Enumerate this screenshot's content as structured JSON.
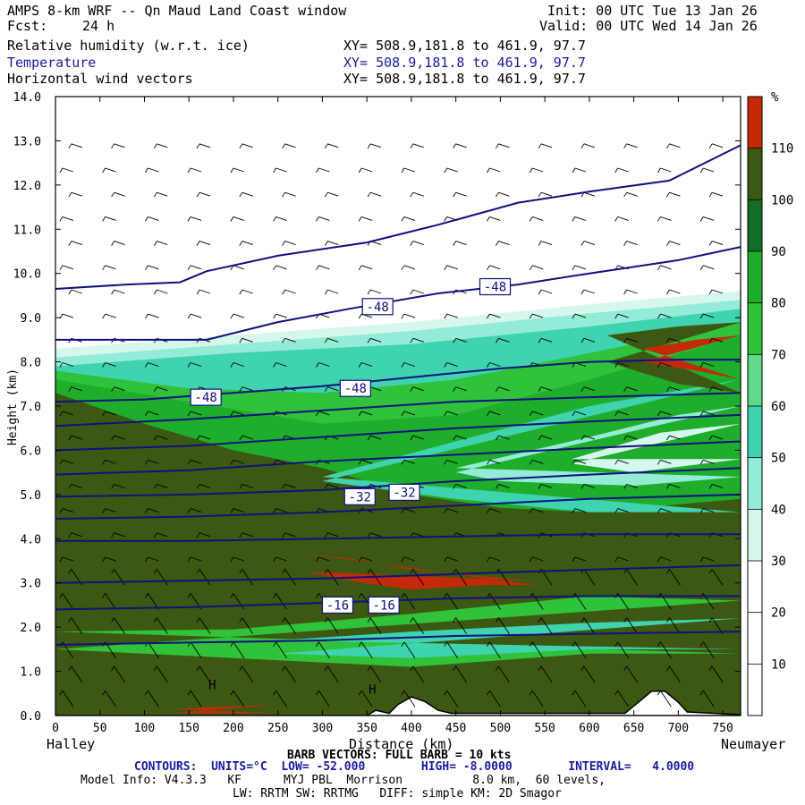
{
  "header": {
    "title": "AMPS 8-km WRF -- Qn Maud Land Coast window",
    "fcst_label": "Fcst:",
    "fcst_value": "24 h",
    "init": "Init: 00 UTC Tue 13 Jan 26",
    "valid": "Valid: 00 UTC Wed 14 Jan 26",
    "fields": [
      {
        "name": "Relative humidity (w.r.t. ice)",
        "xy": "XY= 508.9,181.8 to 461.9, 97.7",
        "color": "#000000"
      },
      {
        "name": "Temperature",
        "xy": "XY= 508.9,181.8 to 461.9, 97.7",
        "color": "#1a1aa0"
      },
      {
        "name": "Horizontal wind vectors",
        "xy": "XY= 508.9,181.8 to 461.9, 97.7",
        "color": "#000000"
      }
    ]
  },
  "chart_data": {
    "type": "heatmap",
    "xlabel": "Distance (km)",
    "ylabel": "Height (km)",
    "xlim": [
      0,
      770
    ],
    "ylim": [
      0,
      14
    ],
    "x_ticks": [
      0,
      50,
      100,
      150,
      200,
      250,
      300,
      350,
      400,
      450,
      500,
      550,
      600,
      650,
      700,
      750
    ],
    "y_ticks": [
      "0.0",
      "1.0",
      "2.0",
      "3.0",
      "4.0",
      "5.0",
      "6.0",
      "7.0",
      "8.0",
      "9.0",
      "10.0",
      "11.0",
      "12.0",
      "13.0",
      "14.0"
    ],
    "left_end_label": "Halley",
    "right_end_label": "Neumayer",
    "colorbar": {
      "unit": "%",
      "labels": [
        "10",
        "20",
        "30",
        "40",
        "50",
        "60",
        "70",
        "80",
        "90",
        "100",
        "110"
      ],
      "bins": [
        {
          "from": 0,
          "to": 30,
          "color": "#ffffff"
        },
        {
          "from": 30,
          "to": 40,
          "color": "#d6f7ee"
        },
        {
          "from": 40,
          "to": 50,
          "color": "#95ecd6"
        },
        {
          "from": 50,
          "to": 60,
          "color": "#3fd3b0"
        },
        {
          "from": 60,
          "to": 70,
          "color": "#5fd98a"
        },
        {
          "from": 70,
          "to": 80,
          "color": "#2fc23a"
        },
        {
          "from": 80,
          "to": 90,
          "color": "#1fae2c"
        },
        {
          "from": 90,
          "to": 100,
          "color": "#126e24"
        },
        {
          "from": 100,
          "to": 110,
          "color": "#3d5812"
        },
        {
          "from": 110,
          "to": 120,
          "color": "#c42a0a"
        }
      ]
    },
    "temperature_contours_celsius": [
      {
        "value": -48,
        "points": [
          [
            0,
            9.65
          ],
          [
            80,
            9.75
          ],
          [
            140,
            9.8
          ],
          [
            170,
            10.05
          ],
          [
            250,
            10.4
          ],
          [
            350,
            10.7
          ],
          [
            430,
            11.1
          ],
          [
            520,
            11.6
          ],
          [
            600,
            11.85
          ],
          [
            690,
            12.1
          ],
          [
            770,
            12.9
          ]
        ]
      },
      {
        "value": -48,
        "points": [
          [
            0,
            8.5
          ],
          [
            170,
            8.5
          ],
          [
            250,
            8.9
          ],
          [
            330,
            9.2
          ],
          [
            430,
            9.55
          ],
          [
            520,
            9.75
          ],
          [
            600,
            10.0
          ],
          [
            700,
            10.3
          ],
          [
            770,
            10.6
          ]
        ]
      },
      {
        "value": -48,
        "points": [
          [
            0,
            7.1
          ],
          [
            100,
            7.15
          ],
          [
            200,
            7.3
          ],
          [
            300,
            7.45
          ],
          [
            400,
            7.65
          ],
          [
            500,
            7.85
          ],
          [
            600,
            8.0
          ],
          [
            700,
            8.05
          ],
          [
            770,
            8.05
          ]
        ]
      },
      {
        "value": -44,
        "points": [
          [
            0,
            6.55
          ],
          [
            150,
            6.7
          ],
          [
            300,
            6.9
          ],
          [
            450,
            7.1
          ],
          [
            600,
            7.2
          ],
          [
            770,
            7.3
          ]
        ]
      },
      {
        "value": -40,
        "points": [
          [
            0,
            6.0
          ],
          [
            150,
            6.1
          ],
          [
            300,
            6.3
          ],
          [
            450,
            6.5
          ],
          [
            600,
            6.65
          ],
          [
            770,
            6.8
          ]
        ]
      },
      {
        "value": -36,
        "points": [
          [
            0,
            5.45
          ],
          [
            150,
            5.55
          ],
          [
            300,
            5.75
          ],
          [
            450,
            5.9
          ],
          [
            600,
            6.05
          ],
          [
            770,
            6.2
          ]
        ]
      },
      {
        "value": -32,
        "points": [
          [
            0,
            4.95
          ],
          [
            150,
            5.0
          ],
          [
            300,
            5.1
          ],
          [
            450,
            5.3
          ],
          [
            600,
            5.45
          ],
          [
            770,
            5.6
          ]
        ]
      },
      {
        "value": -28,
        "points": [
          [
            0,
            4.45
          ],
          [
            150,
            4.5
          ],
          [
            300,
            4.6
          ],
          [
            450,
            4.75
          ],
          [
            600,
            4.9
          ],
          [
            770,
            5.0
          ]
        ]
      },
      {
        "value": -24,
        "points": [
          [
            0,
            3.95
          ],
          [
            150,
            3.95
          ],
          [
            300,
            4.0
          ],
          [
            450,
            4.05
          ],
          [
            600,
            4.1
          ],
          [
            770,
            4.1
          ]
        ]
      },
      {
        "value": -20,
        "points": [
          [
            0,
            3.0
          ],
          [
            150,
            3.05
          ],
          [
            300,
            3.1
          ],
          [
            450,
            3.2
          ],
          [
            600,
            3.3
          ],
          [
            770,
            3.4
          ]
        ]
      },
      {
        "value": -16,
        "points": [
          [
            0,
            2.4
          ],
          [
            150,
            2.45
          ],
          [
            300,
            2.55
          ],
          [
            450,
            2.65
          ],
          [
            600,
            2.7
          ],
          [
            770,
            2.7
          ]
        ]
      },
      {
        "value": -12,
        "points": [
          [
            0,
            1.6
          ],
          [
            150,
            1.65
          ],
          [
            300,
            1.7
          ],
          [
            450,
            1.8
          ],
          [
            600,
            1.85
          ],
          [
            770,
            1.9
          ]
        ]
      }
    ],
    "contour_labels": [
      {
        "text": "-48",
        "x": 345,
        "y": 9.25
      },
      {
        "text": "-48",
        "x": 477,
        "y": 9.7
      },
      {
        "text": "-48",
        "x": 152,
        "y": 7.2
      },
      {
        "text": "-48",
        "x": 320,
        "y": 7.4
      },
      {
        "text": "-32",
        "x": 325,
        "y": 4.95
      },
      {
        "text": "-32",
        "x": 375,
        "y": 5.05
      },
      {
        "text": "-16",
        "x": 300,
        "y": 2.5
      },
      {
        "text": "-16",
        "x": 352,
        "y": 2.5
      }
    ],
    "pressure_marks": [
      {
        "text": "H",
        "x": 172,
        "y": 0.6
      },
      {
        "text": "H",
        "x": 352,
        "y": 0.5
      }
    ],
    "terrain_km": [
      [
        0,
        0
      ],
      [
        350,
        0
      ],
      [
        360,
        0.12
      ],
      [
        375,
        0.05
      ],
      [
        385,
        0.25
      ],
      [
        400,
        0.42
      ],
      [
        415,
        0.32
      ],
      [
        430,
        0.12
      ],
      [
        445,
        0.05
      ],
      [
        640,
        0.05
      ],
      [
        655,
        0.3
      ],
      [
        670,
        0.55
      ],
      [
        685,
        0.55
      ],
      [
        700,
        0.3
      ],
      [
        710,
        0.08
      ],
      [
        770,
        0.02
      ]
    ]
  },
  "footer": {
    "barb_vectors": "BARB VECTORS: FULL BARB = 10 kts",
    "contours": "CONTOURS:  UNITS=°C  LOW= -52.000        HIGH= -8.0000        INTERVAL=   4.0000",
    "model_info": "Model Info: V4.3.3   KF      MYJ PBL  Morrison          8.0 km,  60 levels,",
    "model_info2": "LW: RRTM SW: RRTMG   DIFF: simple KM: 2D Smagor"
  }
}
